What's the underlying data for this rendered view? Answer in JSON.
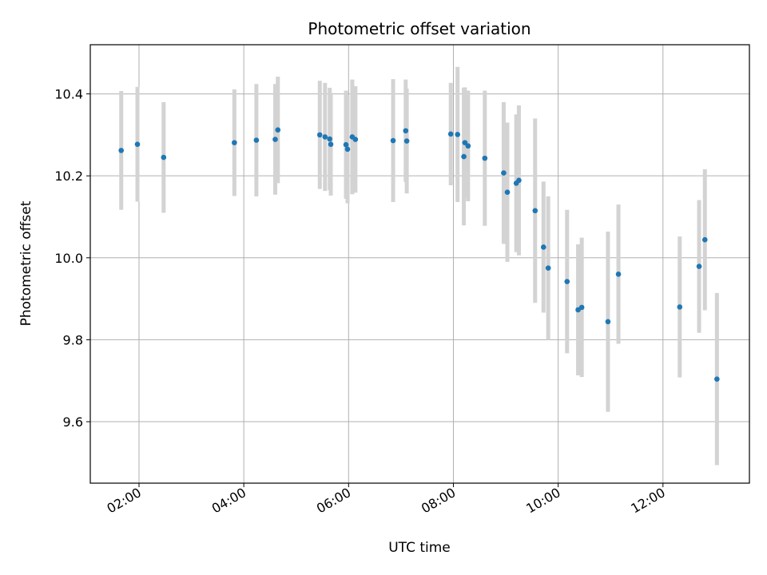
{
  "chart_data": {
    "type": "scatter",
    "title": "Photometric offset variation",
    "xlabel": "UTC time",
    "ylabel": "Photometric offset",
    "x_unit": "hours UTC",
    "xlim": [
      1.07,
      13.65
    ],
    "ylim": [
      9.45,
      10.52
    ],
    "grid": true,
    "x_ticks": [
      {
        "value": 2,
        "label": "02:00"
      },
      {
        "value": 4,
        "label": "04:00"
      },
      {
        "value": 6,
        "label": "06:00"
      },
      {
        "value": 8,
        "label": "08:00"
      },
      {
        "value": 10,
        "label": "10:00"
      },
      {
        "value": 12,
        "label": "12:00"
      }
    ],
    "y_ticks": [
      {
        "value": 9.6,
        "label": "9.6"
      },
      {
        "value": 9.8,
        "label": "9.8"
      },
      {
        "value": 10.0,
        "label": "10.0"
      },
      {
        "value": 10.2,
        "label": "10.2"
      },
      {
        "value": 10.4,
        "label": "10.4"
      }
    ],
    "colors": {
      "marker": "#1f77b4",
      "errorbar": "#d3d3d3",
      "grid": "#b0b0b0"
    },
    "series": [
      {
        "name": "offset",
        "points": [
          {
            "x": 1.66,
            "y": 10.262,
            "err": 0.145
          },
          {
            "x": 1.97,
            "y": 10.277,
            "err": 0.14
          },
          {
            "x": 2.47,
            "y": 10.245,
            "err": 0.135
          },
          {
            "x": 3.82,
            "y": 10.281,
            "err": 0.13
          },
          {
            "x": 4.24,
            "y": 10.287,
            "err": 0.137
          },
          {
            "x": 4.6,
            "y": 10.289,
            "err": 0.135
          },
          {
            "x": 4.65,
            "y": 10.312,
            "err": 0.13
          },
          {
            "x": 5.45,
            "y": 10.3,
            "err": 0.132
          },
          {
            "x": 5.55,
            "y": 10.295,
            "err": 0.132
          },
          {
            "x": 5.64,
            "y": 10.29,
            "err": 0.125
          },
          {
            "x": 5.66,
            "y": 10.277,
            "err": 0.125
          },
          {
            "x": 5.95,
            "y": 10.276,
            "err": 0.132
          },
          {
            "x": 5.98,
            "y": 10.265,
            "err": 0.132
          },
          {
            "x": 6.07,
            "y": 10.295,
            "err": 0.14
          },
          {
            "x": 6.13,
            "y": 10.289,
            "err": 0.13
          },
          {
            "x": 6.85,
            "y": 10.286,
            "err": 0.15
          },
          {
            "x": 7.09,
            "y": 10.31,
            "err": 0.125
          },
          {
            "x": 7.11,
            "y": 10.285,
            "err": 0.128
          },
          {
            "x": 7.95,
            "y": 10.302,
            "err": 0.125
          },
          {
            "x": 8.08,
            "y": 10.301,
            "err": 0.165
          },
          {
            "x": 8.2,
            "y": 10.247,
            "err": 0.168
          },
          {
            "x": 8.22,
            "y": 10.281,
            "err": 0.135
          },
          {
            "x": 8.28,
            "y": 10.273,
            "err": 0.135
          },
          {
            "x": 8.6,
            "y": 10.243,
            "err": 0.165
          },
          {
            "x": 8.96,
            "y": 10.207,
            "err": 0.173
          },
          {
            "x": 9.03,
            "y": 10.16,
            "err": 0.17
          },
          {
            "x": 9.2,
            "y": 10.182,
            "err": 0.168
          },
          {
            "x": 9.25,
            "y": 10.189,
            "err": 0.183
          },
          {
            "x": 9.56,
            "y": 10.115,
            "err": 0.225
          },
          {
            "x": 9.72,
            "y": 10.026,
            "err": 0.16
          },
          {
            "x": 9.81,
            "y": 9.975,
            "err": 0.175
          },
          {
            "x": 10.17,
            "y": 9.942,
            "err": 0.175
          },
          {
            "x": 10.38,
            "y": 9.873,
            "err": 0.16
          },
          {
            "x": 10.45,
            "y": 9.879,
            "err": 0.17
          },
          {
            "x": 10.95,
            "y": 9.844,
            "err": 0.22
          },
          {
            "x": 11.15,
            "y": 9.96,
            "err": 0.17
          },
          {
            "x": 12.32,
            "y": 9.88,
            "err": 0.172
          },
          {
            "x": 12.69,
            "y": 9.979,
            "err": 0.162
          },
          {
            "x": 12.8,
            "y": 10.044,
            "err": 0.172
          },
          {
            "x": 13.03,
            "y": 9.704,
            "err": 0.21
          }
        ]
      }
    ]
  }
}
